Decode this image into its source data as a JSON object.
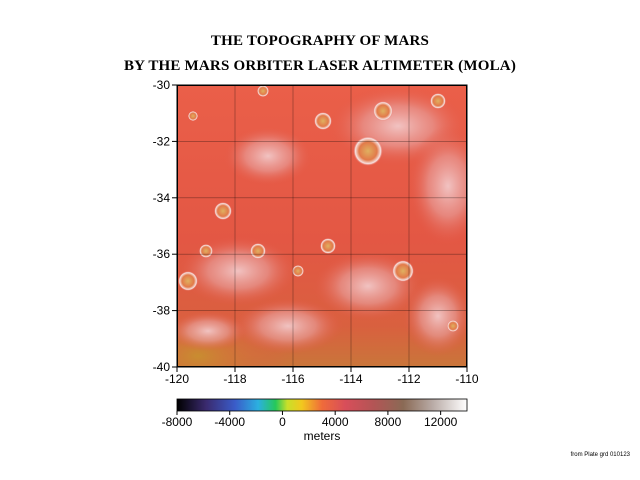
{
  "title": {
    "line1": "THE TOPOGRAPHY OF MARS",
    "line2": "BY THE MARS ORBITER LASER ALTIMETER (MOLA)"
  },
  "map": {
    "x_ticks": [
      "-120",
      "-118",
      "-116",
      "-114",
      "-112",
      "-110"
    ],
    "y_ticks": [
      "-30",
      "-32",
      "-34",
      "-36",
      "-38",
      "-40"
    ],
    "longitude_range": [
      -120,
      -110
    ],
    "latitude_range": [
      -40,
      -30
    ],
    "grid": true,
    "base_color": "#e65a45"
  },
  "colorbar": {
    "ticks": [
      "-8000",
      "-4000",
      "0",
      "4000",
      "8000",
      "12000"
    ],
    "label": "meters",
    "range": [
      -8000,
      14000
    ]
  },
  "credit": "from Plate grd 010123"
}
